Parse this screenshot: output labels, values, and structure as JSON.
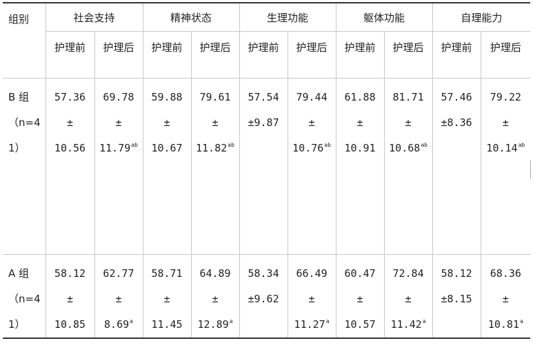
{
  "table": {
    "group_header": "组别",
    "categories": [
      "社会支持",
      "精神状态",
      "生理功能",
      "躯体功能",
      "自理能力"
    ],
    "sub_before": "护理前",
    "sub_after": "护理后",
    "rows": [
      {
        "label_lines": [
          "B 组",
          "（n=4",
          "1）"
        ],
        "cells": [
          {
            "lines": [
              "57.36",
              "±",
              "10.56"
            ],
            "sup": ""
          },
          {
            "lines": [
              "69.78",
              "±",
              "11.79"
            ],
            "sup": "ab"
          },
          {
            "lines": [
              "59.88",
              "±",
              "10.67"
            ],
            "sup": ""
          },
          {
            "lines": [
              "79.61",
              "±",
              "11.82"
            ],
            "sup": "ab"
          },
          {
            "lines": [
              "57.54",
              "±9.87",
              ""
            ],
            "sup": ""
          },
          {
            "lines": [
              "79.44",
              "±",
              "10.76"
            ],
            "sup": "ab"
          },
          {
            "lines": [
              "61.88",
              "±",
              "10.91"
            ],
            "sup": ""
          },
          {
            "lines": [
              "81.71",
              "±",
              "10.68"
            ],
            "sup": "ab"
          },
          {
            "lines": [
              "57.46",
              "±8.36",
              ""
            ],
            "sup": ""
          },
          {
            "lines": [
              "79.22",
              "±",
              "10.14"
            ],
            "sup": "ab"
          }
        ]
      },
      {
        "label_lines": [
          "A 组",
          "（n=4",
          "1）"
        ],
        "cells": [
          {
            "lines": [
              "58.12",
              "±",
              "10.85"
            ],
            "sup": ""
          },
          {
            "lines": [
              "62.77",
              "±",
              "8.69"
            ],
            "sup": "a"
          },
          {
            "lines": [
              "58.71",
              "±",
              "11.45"
            ],
            "sup": ""
          },
          {
            "lines": [
              "64.89",
              "±",
              "12.89"
            ],
            "sup": "a"
          },
          {
            "lines": [
              "58.34",
              "±9.62",
              ""
            ],
            "sup": ""
          },
          {
            "lines": [
              "66.49",
              "±",
              "11.27"
            ],
            "sup": "a"
          },
          {
            "lines": [
              "60.47",
              "±",
              "10.57"
            ],
            "sup": ""
          },
          {
            "lines": [
              "72.84",
              "±",
              "11.42"
            ],
            "sup": "a"
          },
          {
            "lines": [
              "58.12",
              "±8.15",
              ""
            ],
            "sup": ""
          },
          {
            "lines": [
              "68.36",
              "±",
              "10.81"
            ],
            "sup": "a"
          }
        ]
      }
    ]
  }
}
